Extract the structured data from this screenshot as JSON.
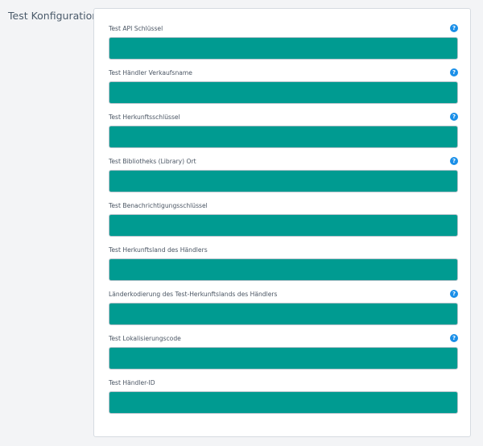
{
  "section": {
    "title": "Test Konfiguration"
  },
  "colors": {
    "input_fill": "#009b91",
    "help_icon": "#1a8fe8"
  },
  "fields": [
    {
      "label": "Test API Schlüssel",
      "value": "",
      "has_help": true,
      "help_glyph": "?"
    },
    {
      "label": "Test Händler Verkaufsname",
      "value": "",
      "has_help": true,
      "help_glyph": "?"
    },
    {
      "label": "Test Herkunftsschlüssel",
      "value": "",
      "has_help": true,
      "help_glyph": "?"
    },
    {
      "label": "Test Bibliotheks (Library) Ort",
      "value": "",
      "has_help": true,
      "help_glyph": "?"
    },
    {
      "label": "Test Benachrichtigungsschlüssel",
      "value": "",
      "has_help": false
    },
    {
      "label": "Test Herkunftsland des Händlers",
      "value": "",
      "has_help": false
    },
    {
      "label": "Länderkodierung des Test-Herkunftslands des Händlers",
      "value": "",
      "has_help": true,
      "help_glyph": "?"
    },
    {
      "label": "Test Lokalisierungscode",
      "value": "",
      "has_help": true,
      "help_glyph": "?"
    },
    {
      "label": "Test Händler-ID",
      "value": "",
      "has_help": false
    }
  ]
}
